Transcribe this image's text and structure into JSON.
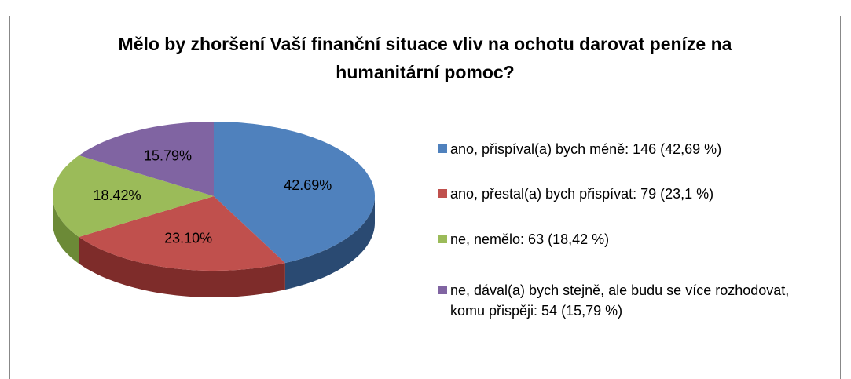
{
  "chart_data": {
    "type": "pie",
    "title": "Mělo by zhoršení Vaší finanční situace vliv na ochotu darovat peníze na humanitární pomoc?",
    "categories": [
      "ano, přispíval(a) bych méně: 146 (42,69 %)",
      "ano, přestal(a) bych přispívat: 79 (23,1 %)",
      "ne, nemělo: 63 (18,42 %)",
      "ne, dával(a) bych stejně, ale budu se více rozhodovat, komu přispěji: 54 (15,79 %)"
    ],
    "values": [
      42.69,
      23.1,
      18.42,
      15.79
    ],
    "value_labels": [
      "42.69%",
      "23.10%",
      "18.42%",
      "15.79%"
    ],
    "colors": [
      "#4f81bd",
      "#c0504d",
      "#9bbb59",
      "#8064a2"
    ],
    "side_colors": [
      "#2a4a72",
      "#7e2c2a",
      "#6c8a37",
      "#5a457a"
    ],
    "legend": "right"
  }
}
